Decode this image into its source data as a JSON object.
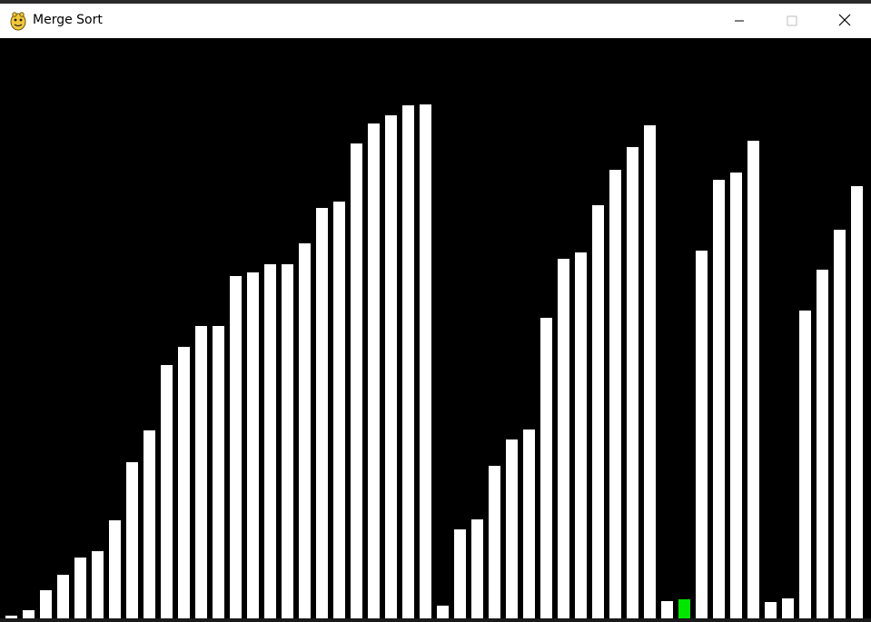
{
  "window": {
    "title": "Merge Sort",
    "icon": "python-icon",
    "controls": [
      "minimize-icon",
      "maximize-icon",
      "close-icon"
    ]
  },
  "chart_data": {
    "type": "bar",
    "bar_color": "#ffffff",
    "highlight_color": "#00e600",
    "background": "#000000",
    "highlight_index": 39,
    "values": [
      3,
      9,
      31,
      48,
      67,
      74,
      108,
      172,
      207,
      279,
      299,
      322,
      322,
      377,
      381,
      390,
      390,
      413,
      452,
      459,
      523,
      545,
      554,
      565,
      566,
      14,
      98,
      109,
      168,
      197,
      208,
      331,
      396,
      403,
      455,
      494,
      519,
      543,
      19,
      21,
      405,
      483,
      491,
      526,
      18,
      22,
      339,
      384,
      428,
      476
    ]
  }
}
